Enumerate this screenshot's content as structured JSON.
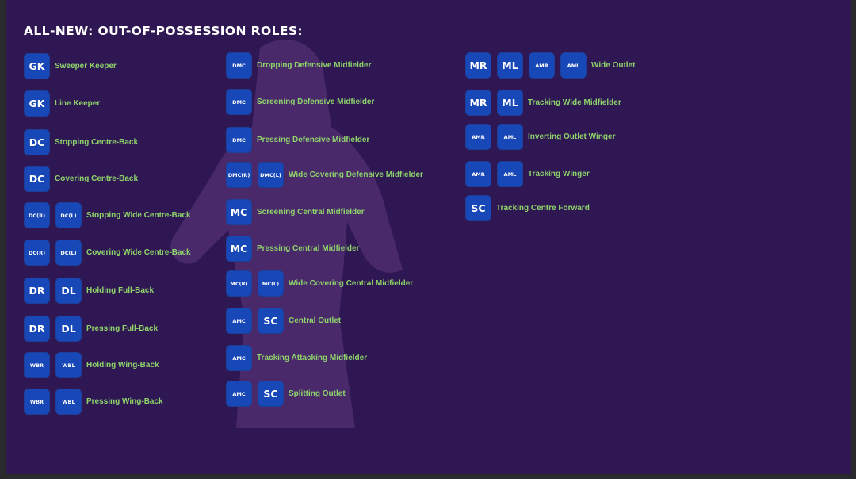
{
  "title": "ALL-NEW: OUT-OF-POSSESSION ROLES:",
  "colors": {
    "background": "#2e1752",
    "badge": "#1848b8",
    "label": "#8fd46a",
    "title": "#ffffff"
  },
  "columns": [
    {
      "rows": [
        {
          "badges": [
            "GK"
          ],
          "label": "Sweeper Keeper"
        },
        {
          "badges": [
            "GK"
          ],
          "label": "Line Keeper"
        },
        {
          "badges": [
            "DC"
          ],
          "label": "Stopping Centre-Back"
        },
        {
          "badges": [
            "DC"
          ],
          "label": "Covering Centre-Back"
        },
        {
          "badges": [
            "DC(R)",
            "DC(L)"
          ],
          "label": "Stopping Wide Centre-Back"
        },
        {
          "badges": [
            "DC(R)",
            "DC(L)"
          ],
          "label": "Covering Wide Centre-Back"
        },
        {
          "badges": [
            "DR",
            "DL"
          ],
          "label": "Holding Full-Back"
        },
        {
          "badges": [
            "DR",
            "DL"
          ],
          "label": "Pressing Full-Back"
        },
        {
          "badges": [
            "WBR",
            "WBL"
          ],
          "label": "Holding Wing-Back"
        },
        {
          "badges": [
            "WBR",
            "WBL"
          ],
          "label": "Pressing Wing-Back"
        }
      ]
    },
    {
      "rows": [
        {
          "badges": [
            "DMC"
          ],
          "label": "Dropping Defensive Midfielder"
        },
        {
          "badges": [
            "DMC"
          ],
          "label": "Screening Defensive Midfielder"
        },
        {
          "badges": [
            "DMC"
          ],
          "label": "Pressing Defensive Midfielder"
        },
        {
          "badges": [
            "DMC(R)",
            "DMC(L)"
          ],
          "label": "Wide Covering Defensive Midfielder"
        },
        {
          "badges": [
            "MC"
          ],
          "label": "Screening Central Midfielder"
        },
        {
          "badges": [
            "MC"
          ],
          "label": "Pressing Central Midfielder"
        },
        {
          "badges": [
            "MC(R)",
            "MC(L)"
          ],
          "label": "Wide Covering Central Midfielder"
        },
        {
          "badges": [
            "AMC",
            "SC"
          ],
          "label": "Central Outlet"
        },
        {
          "badges": [
            "AMC"
          ],
          "label": "Tracking Attacking Midfielder"
        },
        {
          "badges": [
            "AMC",
            "SC"
          ],
          "label": "Splitting Outlet"
        }
      ]
    },
    {
      "rows": [
        {
          "badges": [
            "MR",
            "ML",
            "AMR",
            "AML"
          ],
          "label": "Wide Outlet"
        },
        {
          "badges": [
            "MR",
            "ML"
          ],
          "label": "Tracking Wide Midfielder"
        },
        {
          "badges": [
            "AMR",
            "AML"
          ],
          "label": "Inverting Outlet Winger"
        },
        {
          "badges": [
            "AMR",
            "AML"
          ],
          "label": "Tracking Winger"
        },
        {
          "badges": [
            "SC"
          ],
          "label": "Tracking Centre Forward"
        }
      ]
    }
  ]
}
